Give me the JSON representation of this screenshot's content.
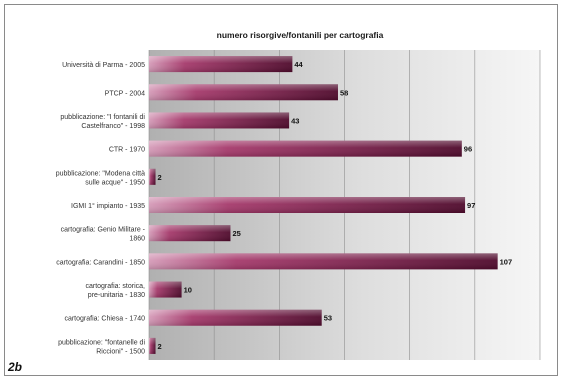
{
  "panel_label": "2b",
  "chart_data": {
    "type": "bar",
    "orientation": "horizontal",
    "title": "numero risorgive/fontanili per cartografia",
    "xlabel": "",
    "ylabel": "",
    "xlim": [
      0,
      120
    ],
    "grid": true,
    "legend": "none",
    "categories": [
      "Università di Parma - 2005",
      "PTCP - 2004",
      "pubblicazione: \"I fontanili di Castelfranco\" - 1998",
      "CTR - 1970",
      "pubblicazione: \"Modena città sulle acque\" - 1950",
      "IGMI 1° impianto - 1935",
      "cartografia: Genio Militare - 1860",
      "cartografia: Carandini - 1850",
      "cartografia: storica, pre-unitaria - 1830",
      "cartografia: Chiesa - 1740",
      "pubblicazione: \"fontanelle di Riccioni\" - 1500"
    ],
    "values": [
      44,
      58,
      43,
      96,
      2,
      97,
      25,
      107,
      10,
      53,
      2
    ],
    "colors": {
      "bar_dark": "#5c0b33",
      "bar_mid": "#8c2253",
      "bar_light": "#e3a6c4",
      "plot_bg_light": "#f4f4f4",
      "plot_bg_dark": "#b3b3b3"
    }
  }
}
